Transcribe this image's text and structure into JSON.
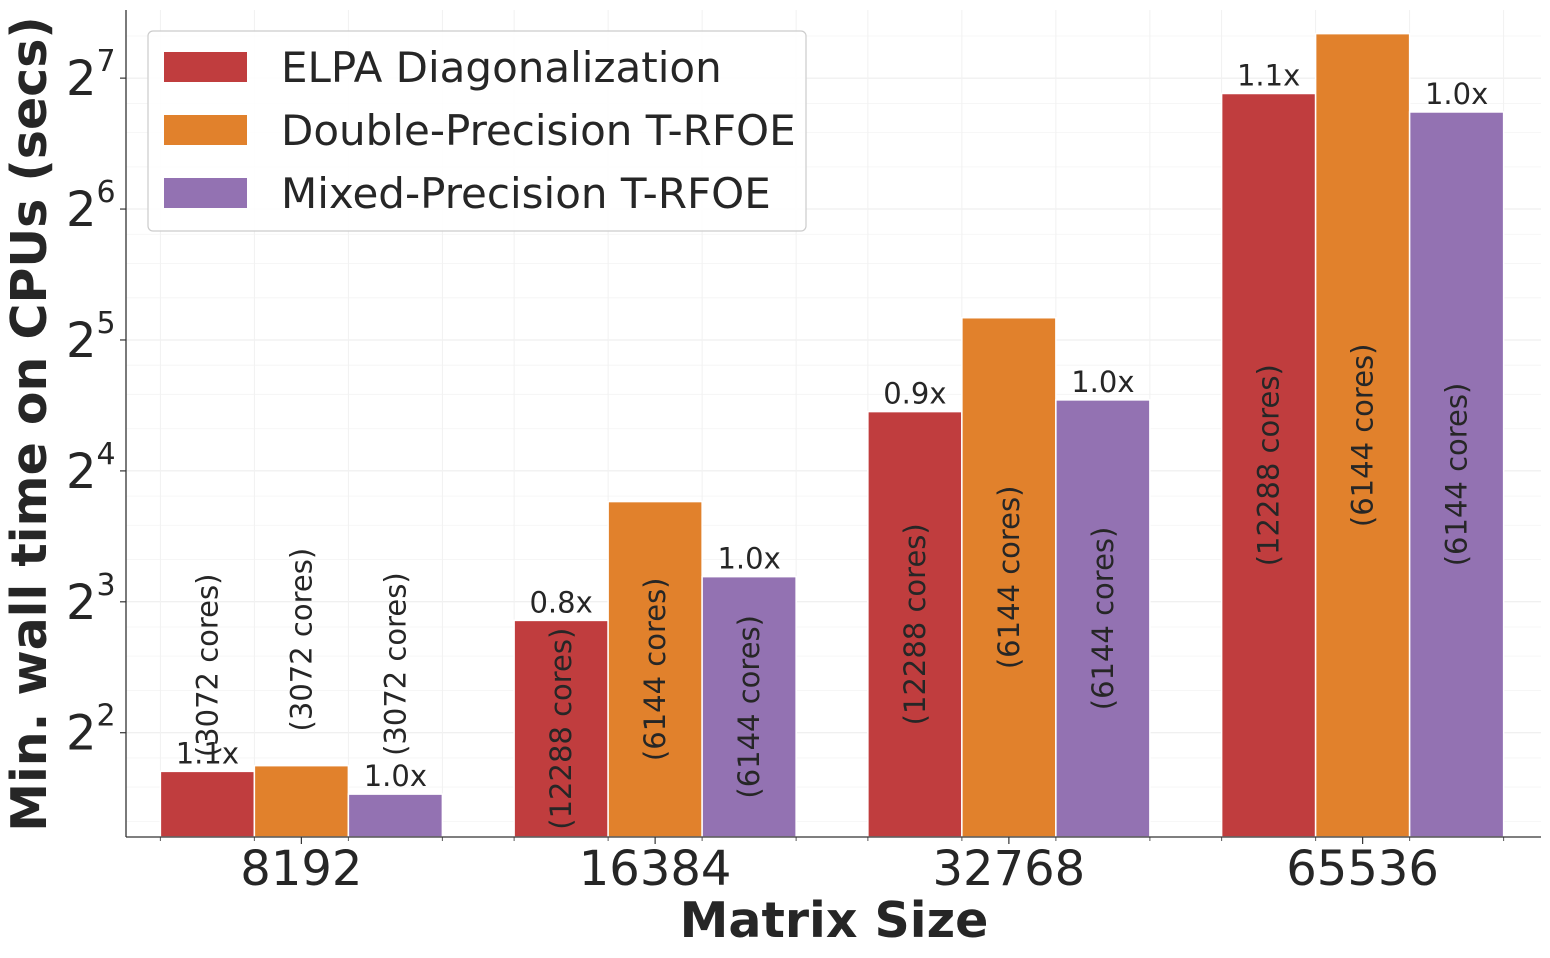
{
  "chart_data": {
    "type": "bar",
    "xlabel": "Matrix Size",
    "ylabel": "Min. wall time on CPUs (secs)",
    "yscale": "log2",
    "ylim": [
      2.303,
      183.6
    ],
    "yticks": [
      {
        "value": 4,
        "base": "2",
        "exp": "2"
      },
      {
        "value": 8,
        "base": "2",
        "exp": "3"
      },
      {
        "value": 16,
        "base": "2",
        "exp": "4"
      },
      {
        "value": 32,
        "base": "2",
        "exp": "5"
      },
      {
        "value": 64,
        "base": "2",
        "exp": "6"
      },
      {
        "value": 128,
        "base": "2",
        "exp": "7"
      }
    ],
    "categories": [
      "8192",
      "16384",
      "32768",
      "65536"
    ],
    "grid": true,
    "legend_position": "top-left",
    "series": [
      {
        "name": "ELPA Diagonalization",
        "color": "#c03d3e",
        "values": [
          3.26,
          7.25,
          21.9,
          118.0
        ],
        "speedup_labels": [
          "1.1x",
          "0.8x",
          "0.9x",
          "1.1x"
        ],
        "core_labels": [
          "(3072 cores)",
          "(12288 cores)",
          "(12288 cores)",
          "(12288 cores)"
        ]
      },
      {
        "name": "Double-Precision T-RFOE",
        "color": "#e1812c",
        "values": [
          3.36,
          13.6,
          36.0,
          162.0
        ],
        "speedup_labels": [
          "",
          "",
          "",
          ""
        ],
        "core_labels": [
          "(3072 cores)",
          "(6144 cores)",
          "(6144 cores)",
          "(6144 cores)"
        ]
      },
      {
        "name": "Mixed-Precision T-RFOE",
        "color": "#9372b2",
        "values": [
          2.89,
          9.14,
          23.3,
          107.0
        ],
        "speedup_labels": [
          "1.0x",
          "1.0x",
          "1.0x",
          "1.0x"
        ],
        "core_labels": [
          "(3072 cores)",
          "(6144 cores)",
          "(6144 cores)",
          "(6144 cores)"
        ]
      }
    ]
  }
}
